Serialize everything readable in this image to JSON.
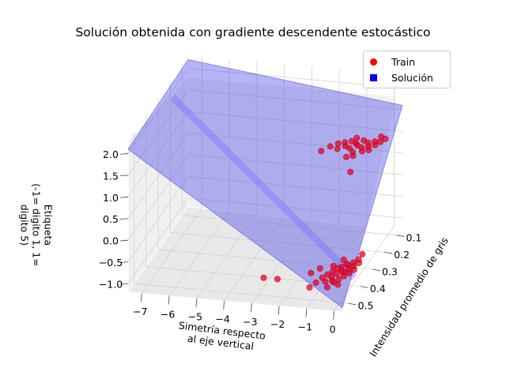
{
  "title": "Solución obtenida con gradiente descendente estocástico",
  "legend": [
    {
      "label": "Train",
      "color": "#ff0000",
      "marker": "circle"
    },
    {
      "label": "Solución",
      "color": "#0000ff",
      "marker": "square"
    }
  ],
  "axes": {
    "x_label_line1": "Simetría respecto",
    "x_label_line2": "al eje vertical",
    "y_label": "Intensidad promedio de gris",
    "z_label_line1": "Etiqueta",
    "z_label_line2": "(-1= digito 1, 1= digito 5)"
  },
  "chart_data": {
    "type": "scatter",
    "projection": "3d",
    "title": "Solución obtenida con gradiente descendente estocástico",
    "xlabel": "Simetría respecto al eje vertical",
    "ylabel": "Intensidad promedio de gris",
    "zlabel": "Etiqueta (-1= digito 1, 1= digito 5)",
    "x_ticks": [
      -7,
      -6,
      -5,
      -4,
      -3,
      -2,
      -1,
      0
    ],
    "y_ticks": [
      0.1,
      0.2,
      0.3,
      0.4,
      0.5
    ],
    "z_ticks": [
      -1.0,
      -0.5,
      0.0,
      0.5,
      1.0,
      1.5,
      2.0
    ],
    "xlim": [
      -7.5,
      0.3
    ],
    "ylim": [
      0.05,
      0.55
    ],
    "zlim": [
      -1.2,
      2.3
    ],
    "grid": true,
    "legend_position": "top-right",
    "series": [
      {
        "name": "Train",
        "type": "scatter",
        "color": "#ff0000",
        "points": [
          [
            -0.4,
            0.12,
            1.0
          ],
          [
            -0.6,
            0.13,
            1.0
          ],
          [
            -0.8,
            0.12,
            1.0
          ],
          [
            -1.0,
            0.14,
            1.0
          ],
          [
            -1.2,
            0.13,
            1.0
          ],
          [
            -0.5,
            0.15,
            1.0
          ],
          [
            -0.7,
            0.16,
            1.0
          ],
          [
            -0.9,
            0.15,
            1.0
          ],
          [
            -1.1,
            0.17,
            1.0
          ],
          [
            -0.3,
            0.14,
            1.0
          ],
          [
            -1.3,
            0.16,
            1.0
          ],
          [
            -0.2,
            0.12,
            1.0
          ],
          [
            -1.5,
            0.18,
            1.0
          ],
          [
            -0.6,
            0.18,
            1.0
          ],
          [
            -0.9,
            0.19,
            1.0
          ],
          [
            -1.1,
            0.11,
            1.0
          ],
          [
            -0.4,
            0.17,
            1.0
          ],
          [
            -1.4,
            0.14,
            1.0
          ],
          [
            -0.8,
            0.21,
            1.0
          ],
          [
            -1.6,
            0.15,
            1.0
          ],
          [
            -0.1,
            0.1,
            1.0
          ],
          [
            -1.8,
            0.17,
            1.0
          ],
          [
            -0.3,
            0.09,
            1.0
          ],
          [
            -1.0,
            0.22,
            1.0
          ],
          [
            -2.0,
            0.2,
            1.0
          ],
          [
            -0.5,
            0.3,
            1.0
          ],
          [
            -0.2,
            0.3,
            -1.0
          ],
          [
            -0.3,
            0.32,
            -1.0
          ],
          [
            -0.4,
            0.34,
            -1.0
          ],
          [
            -0.5,
            0.33,
            -1.0
          ],
          [
            -0.6,
            0.35,
            -1.0
          ],
          [
            -0.7,
            0.36,
            -1.0
          ],
          [
            -0.3,
            0.36,
            -1.0
          ],
          [
            -0.4,
            0.38,
            -1.0
          ],
          [
            -0.2,
            0.34,
            -1.0
          ],
          [
            -0.5,
            0.37,
            -1.0
          ],
          [
            -0.6,
            0.39,
            -1.0
          ],
          [
            -0.8,
            0.38,
            -1.0
          ],
          [
            -0.1,
            0.32,
            -1.0
          ],
          [
            -0.3,
            0.4,
            -1.0
          ],
          [
            -0.7,
            0.41,
            -1.0
          ],
          [
            -0.4,
            0.42,
            -1.0
          ],
          [
            -0.9,
            0.4,
            -1.0
          ],
          [
            -0.2,
            0.38,
            -1.0
          ],
          [
            -0.6,
            0.43,
            -1.0
          ],
          [
            -1.0,
            0.42,
            -1.0
          ],
          [
            -0.5,
            0.44,
            -1.0
          ],
          [
            -0.8,
            0.44,
            -1.0
          ],
          [
            -1.1,
            0.45,
            -1.0
          ],
          [
            -0.3,
            0.45,
            -1.0
          ],
          [
            -1.5,
            0.4,
            -1.0
          ],
          [
            -2.5,
            0.45,
            -1.0
          ],
          [
            -1.2,
            0.48,
            -1.0
          ],
          [
            -0.6,
            0.47,
            -1.0
          ],
          [
            -0.1,
            0.36,
            -1.0
          ],
          [
            -0.9,
            0.35,
            -1.0
          ],
          [
            -3.0,
            0.45,
            -1.0
          ],
          [
            -0.2,
            0.27,
            -1.0
          ],
          [
            -1.3,
            0.37,
            -1.0
          ],
          [
            -0.7,
            0.31,
            -1.0
          ]
        ]
      },
      {
        "name": "Solución",
        "type": "surface",
        "color": "#0000ff",
        "corners": [
          [
            -7.5,
            0.05,
            2.2
          ],
          [
            0.3,
            0.05,
            1.6
          ],
          [
            0.3,
            0.55,
            -1.1
          ],
          [
            -7.5,
            0.55,
            2.1
          ]
        ]
      }
    ]
  }
}
